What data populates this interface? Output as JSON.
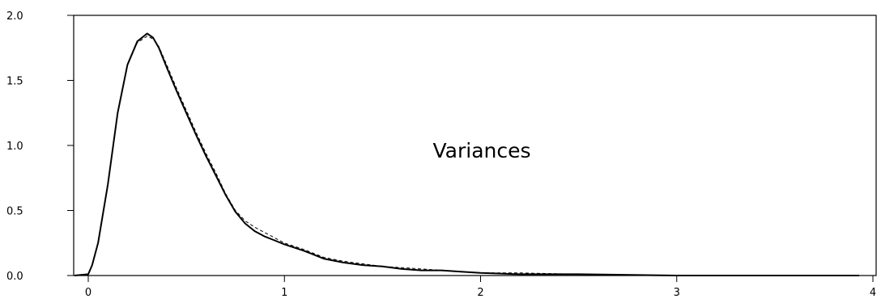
{
  "chart_data": {
    "type": "line",
    "xlim": [
      0,
      4
    ],
    "ylim": [
      0,
      2.0
    ],
    "x_ticks": [
      "0",
      "1",
      "2",
      "3",
      "4"
    ],
    "y_ticks": [
      "0.0",
      "0.5",
      "1.0",
      "1.5",
      "2.0"
    ],
    "annotation": "Variances",
    "grid": false,
    "series": [
      {
        "style": "solid",
        "color": "#000000",
        "x": [
          -0.07,
          0.0,
          0.02,
          0.05,
          0.1,
          0.15,
          0.2,
          0.25,
          0.3,
          0.33,
          0.36,
          0.4,
          0.45,
          0.5,
          0.55,
          0.6,
          0.65,
          0.7,
          0.75,
          0.8,
          0.85,
          0.9,
          0.95,
          1.0,
          1.1,
          1.2,
          1.3,
          1.4,
          1.5,
          1.6,
          1.7,
          1.8,
          1.9,
          2.0,
          2.2,
          2.5,
          3.0,
          3.5,
          3.93
        ],
        "y": [
          0.0,
          0.01,
          0.08,
          0.25,
          0.7,
          1.25,
          1.62,
          1.8,
          1.86,
          1.83,
          1.75,
          1.6,
          1.42,
          1.25,
          1.08,
          0.92,
          0.77,
          0.62,
          0.49,
          0.4,
          0.34,
          0.3,
          0.27,
          0.24,
          0.19,
          0.13,
          0.1,
          0.08,
          0.07,
          0.05,
          0.04,
          0.04,
          0.03,
          0.02,
          0.01,
          0.01,
          0.0,
          0.0,
          0.0
        ]
      },
      {
        "style": "dashed",
        "color": "#000000",
        "x": [
          -0.07,
          0.0,
          0.02,
          0.05,
          0.1,
          0.15,
          0.2,
          0.25,
          0.3,
          0.33,
          0.36,
          0.4,
          0.45,
          0.5,
          0.55,
          0.6,
          0.65,
          0.7,
          0.75,
          0.8,
          0.85,
          0.9,
          0.95,
          1.0,
          1.1,
          1.2,
          1.3,
          1.4,
          1.5,
          1.6,
          1.7,
          1.8,
          1.9,
          2.0,
          2.2,
          2.5,
          3.0,
          3.5,
          3.93
        ],
        "y": [
          0.0,
          0.01,
          0.08,
          0.25,
          0.7,
          1.25,
          1.62,
          1.79,
          1.84,
          1.82,
          1.76,
          1.62,
          1.44,
          1.27,
          1.1,
          0.94,
          0.79,
          0.63,
          0.5,
          0.42,
          0.37,
          0.33,
          0.29,
          0.25,
          0.2,
          0.14,
          0.11,
          0.09,
          0.07,
          0.06,
          0.05,
          0.04,
          0.03,
          0.02,
          0.02,
          0.01,
          0.0,
          0.0,
          0.0
        ]
      }
    ]
  }
}
